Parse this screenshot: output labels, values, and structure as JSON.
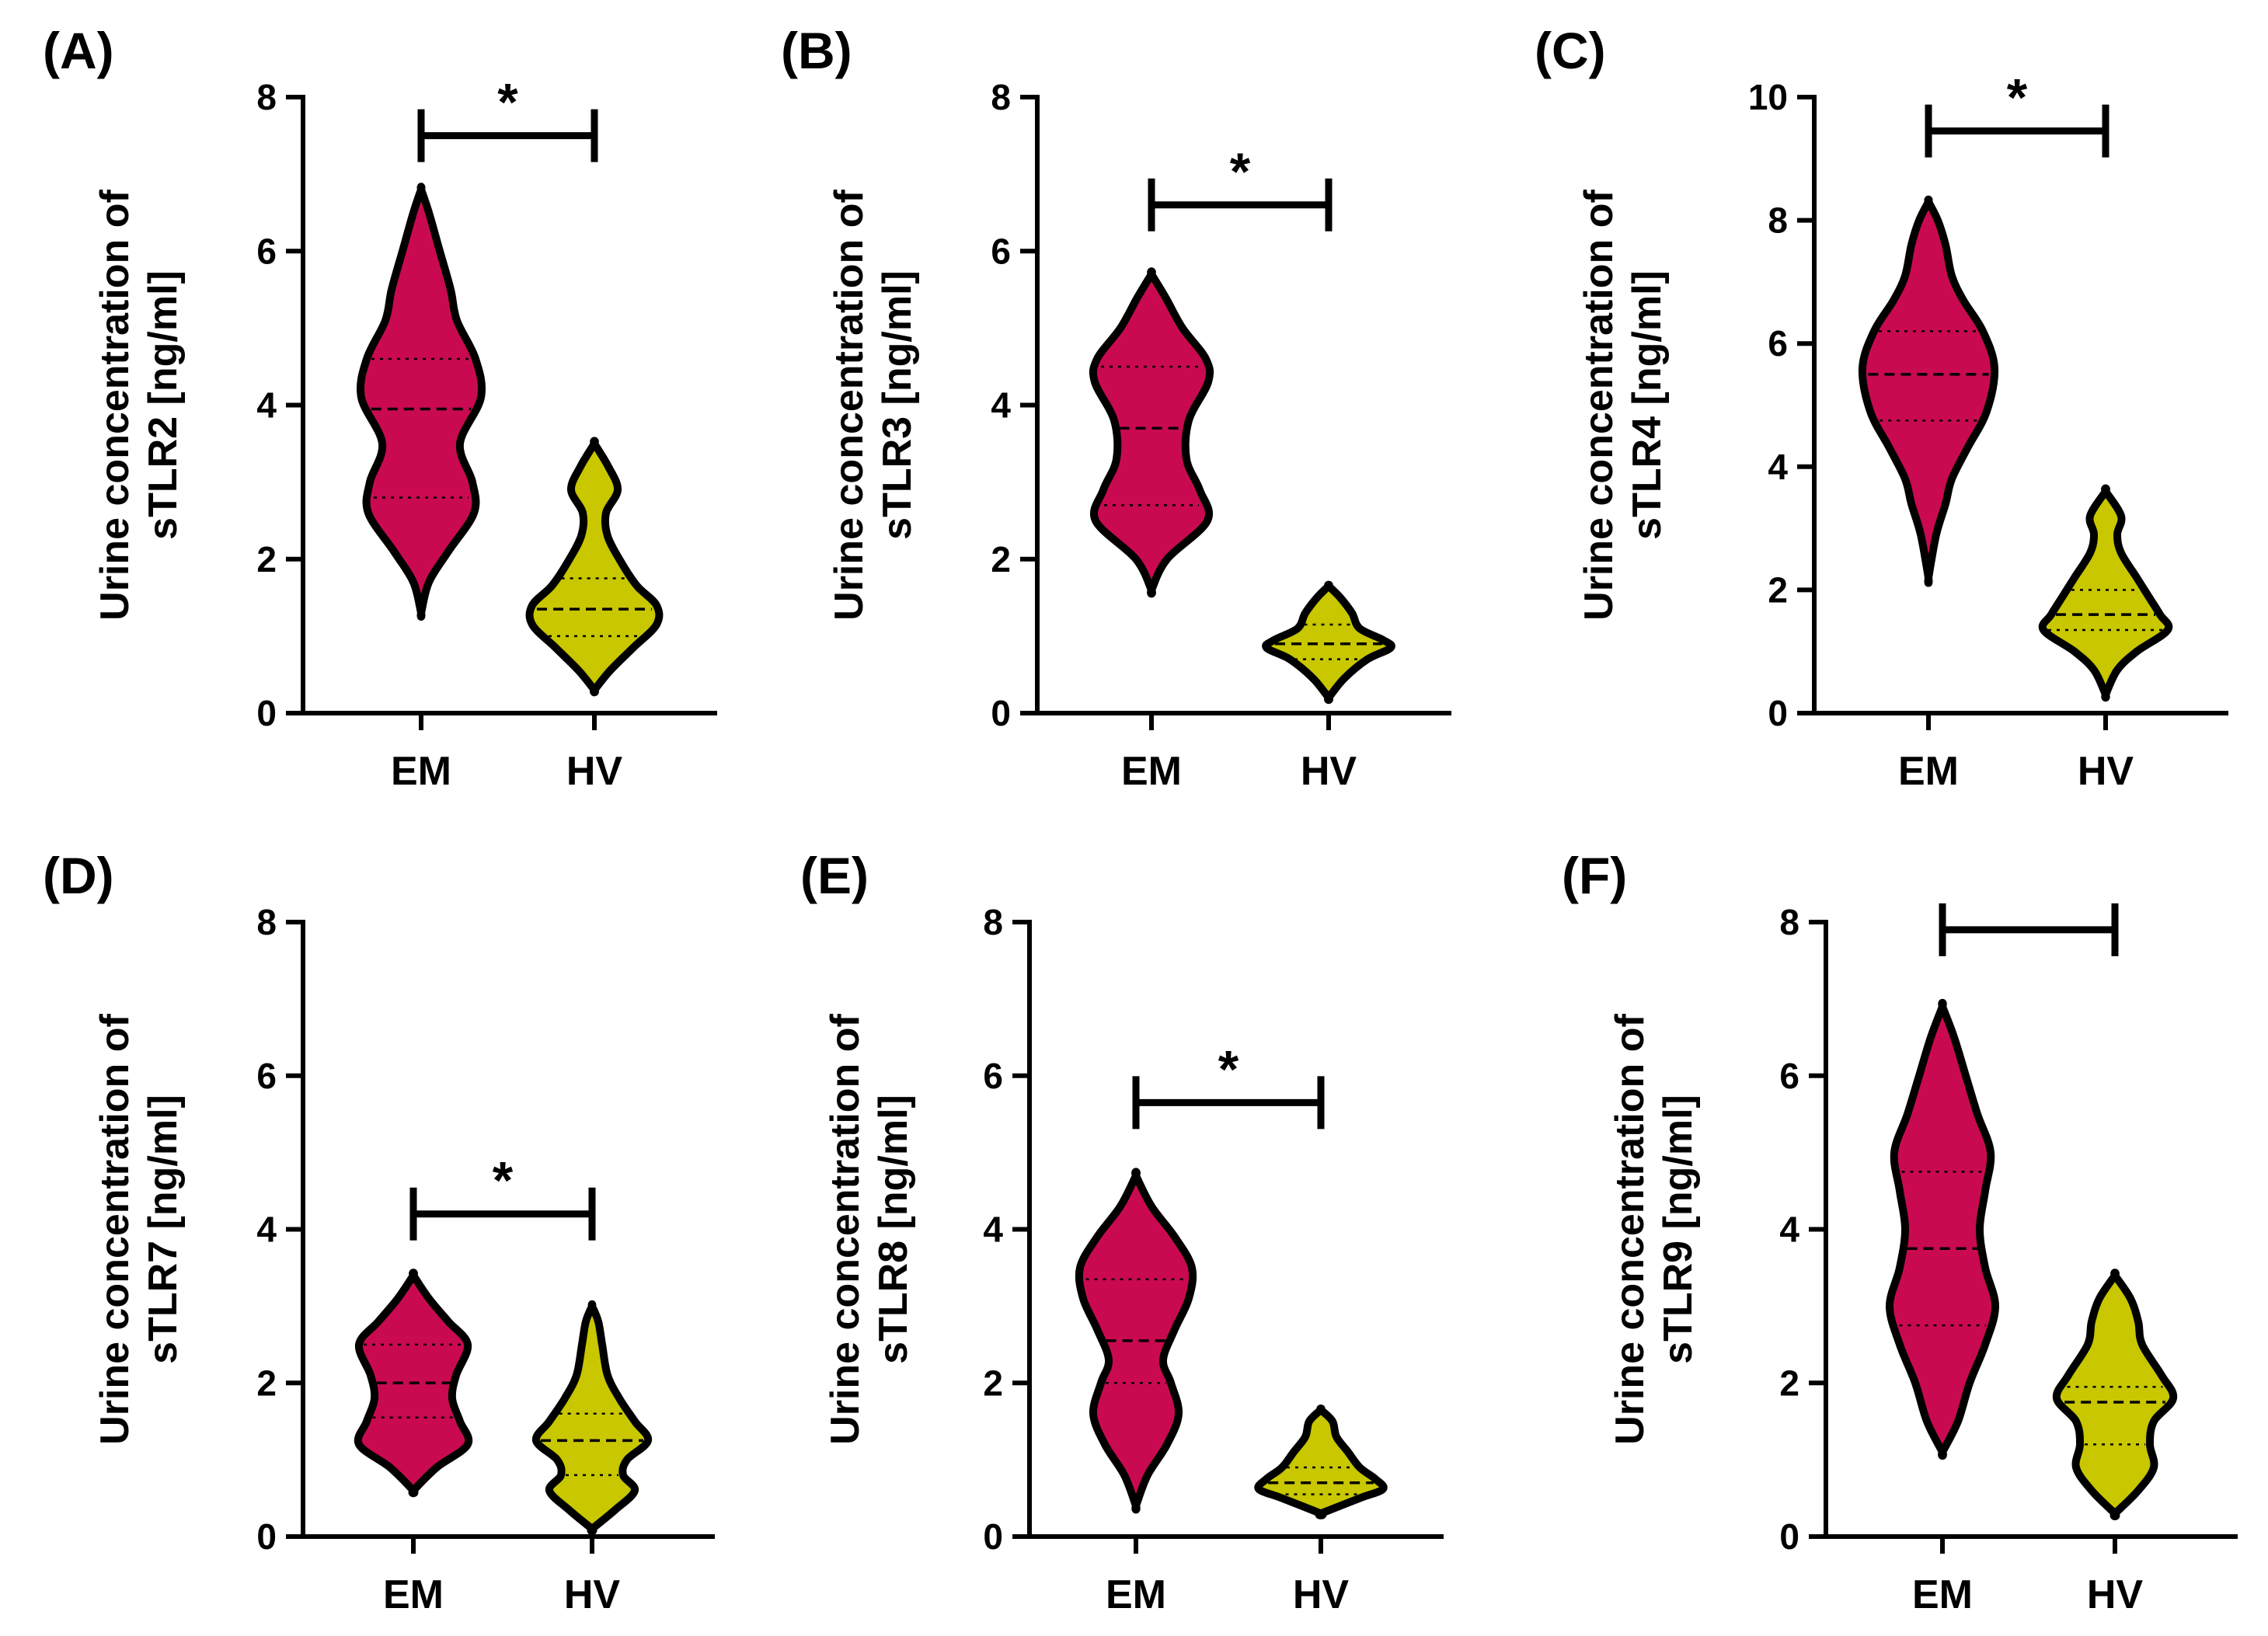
{
  "figure": {
    "group_colors": {
      "EM": "#c90a50",
      "HV": "#c8c700"
    }
  },
  "chart_data": [
    {
      "type": "violin",
      "panel_label": "(A)",
      "ylabel_line1": "Urine concentration of",
      "ylabel_line2": "sTLR2 [ng/ml]",
      "categories": [
        "EM",
        "HV"
      ],
      "ylim": [
        0,
        8
      ],
      "yticks": [
        "0",
        "2",
        "4",
        "6",
        "8"
      ],
      "series": [
        {
          "name": "EM",
          "min": 1.3,
          "max": 6.8,
          "q1": 2.8,
          "median": 3.95,
          "q3": 4.6,
          "density": [
            [
              1.3,
              0
            ],
            [
              1.7,
              0.1
            ],
            [
              2.1,
              0.35
            ],
            [
              2.6,
              0.68
            ],
            [
              3.0,
              0.66
            ],
            [
              3.5,
              0.5
            ],
            [
              4.1,
              0.77
            ],
            [
              4.6,
              0.7
            ],
            [
              5.1,
              0.46
            ],
            [
              5.5,
              0.38
            ],
            [
              6.0,
              0.24
            ],
            [
              6.5,
              0.1
            ],
            [
              6.8,
              0
            ]
          ]
        },
        {
          "name": "HV",
          "min": 0.3,
          "max": 3.5,
          "q1": 1.0,
          "median": 1.35,
          "q3": 1.75,
          "density": [
            [
              0.3,
              0
            ],
            [
              0.55,
              0.2
            ],
            [
              0.85,
              0.5
            ],
            [
              1.15,
              0.8
            ],
            [
              1.4,
              0.8
            ],
            [
              1.65,
              0.55
            ],
            [
              1.95,
              0.35
            ],
            [
              2.3,
              0.17
            ],
            [
              2.6,
              0.15
            ],
            [
              2.9,
              0.3
            ],
            [
              3.2,
              0.18
            ],
            [
              3.5,
              0
            ]
          ]
        }
      ],
      "significance": {
        "label": "*",
        "y": 7.5
      }
    },
    {
      "type": "violin",
      "panel_label": "(B)",
      "ylabel_line1": "Urine concentration of",
      "ylabel_line2": "sTLR3 [ng/ml]",
      "categories": [
        "EM",
        "HV"
      ],
      "ylim": [
        0,
        8
      ],
      "yticks": [
        "0",
        "2",
        "4",
        "6",
        "8"
      ],
      "series": [
        {
          "name": "EM",
          "min": 1.6,
          "max": 5.7,
          "q1": 2.7,
          "median": 3.7,
          "q3": 4.5,
          "density": [
            [
              1.6,
              0
            ],
            [
              2.0,
              0.2
            ],
            [
              2.5,
              0.72
            ],
            [
              2.9,
              0.62
            ],
            [
              3.3,
              0.45
            ],
            [
              3.8,
              0.48
            ],
            [
              4.3,
              0.73
            ],
            [
              4.6,
              0.7
            ],
            [
              5.0,
              0.4
            ],
            [
              5.4,
              0.18
            ],
            [
              5.7,
              0
            ]
          ]
        },
        {
          "name": "HV",
          "min": 0.2,
          "max": 1.65,
          "q1": 0.7,
          "median": 0.9,
          "q3": 1.15,
          "density": [
            [
              0.2,
              0
            ],
            [
              0.45,
              0.2
            ],
            [
              0.7,
              0.5
            ],
            [
              0.85,
              0.8
            ],
            [
              0.95,
              0.7
            ],
            [
              1.1,
              0.4
            ],
            [
              1.3,
              0.3
            ],
            [
              1.5,
              0.15
            ],
            [
              1.65,
              0
            ]
          ]
        }
      ],
      "significance": {
        "label": "*",
        "y": 6.6
      }
    },
    {
      "type": "violin",
      "panel_label": "(C)",
      "ylabel_line1": "Urine concentration of",
      "ylabel_line2": "sTLR4 [ng/ml]",
      "categories": [
        "EM",
        "HV"
      ],
      "ylim": [
        0,
        10
      ],
      "yticks": [
        "0",
        "2",
        "4",
        "6",
        "8",
        "10"
      ],
      "series": [
        {
          "name": "EM",
          "min": 2.2,
          "max": 8.3,
          "q1": 4.75,
          "median": 5.5,
          "q3": 6.2,
          "density": [
            [
              2.2,
              0
            ],
            [
              2.9,
              0.1
            ],
            [
              3.4,
              0.22
            ],
            [
              3.8,
              0.3
            ],
            [
              4.3,
              0.5
            ],
            [
              4.9,
              0.75
            ],
            [
              5.6,
              0.85
            ],
            [
              6.2,
              0.7
            ],
            [
              6.7,
              0.45
            ],
            [
              7.1,
              0.3
            ],
            [
              7.6,
              0.22
            ],
            [
              8.0,
              0.12
            ],
            [
              8.3,
              0
            ]
          ]
        },
        {
          "name": "HV",
          "min": 0.3,
          "max": 3.6,
          "q1": 1.35,
          "median": 1.6,
          "q3": 2.0,
          "density": [
            [
              0.3,
              0
            ],
            [
              0.7,
              0.15
            ],
            [
              1.0,
              0.4
            ],
            [
              1.35,
              0.8
            ],
            [
              1.6,
              0.7
            ],
            [
              1.9,
              0.55
            ],
            [
              2.2,
              0.4
            ],
            [
              2.6,
              0.2
            ],
            [
              2.9,
              0.15
            ],
            [
              3.2,
              0.2
            ],
            [
              3.6,
              0
            ]
          ]
        }
      ],
      "significance": {
        "label": "*",
        "y": 9.45
      }
    },
    {
      "type": "violin",
      "panel_label": "(D)",
      "ylabel_line1": "Urine concentration of",
      "ylabel_line2": "sTLR7 [ng/ml]",
      "categories": [
        "EM",
        "HV"
      ],
      "ylim": [
        0,
        8
      ],
      "yticks": [
        "0",
        "2",
        "4",
        "6",
        "8"
      ],
      "series": [
        {
          "name": "EM",
          "min": 0.6,
          "max": 3.4,
          "q1": 1.55,
          "median": 2.0,
          "q3": 2.5,
          "density": [
            [
              0.6,
              0
            ],
            [
              0.9,
              0.3
            ],
            [
              1.2,
              0.7
            ],
            [
              1.5,
              0.6
            ],
            [
              1.8,
              0.5
            ],
            [
              2.1,
              0.55
            ],
            [
              2.5,
              0.7
            ],
            [
              2.8,
              0.45
            ],
            [
              3.1,
              0.2
            ],
            [
              3.4,
              0
            ]
          ]
        },
        {
          "name": "HV",
          "min": 0.1,
          "max": 3.0,
          "q1": 0.8,
          "median": 1.25,
          "q3": 1.6,
          "density": [
            [
              0.1,
              0
            ],
            [
              0.35,
              0.3
            ],
            [
              0.6,
              0.55
            ],
            [
              0.8,
              0.4
            ],
            [
              1.0,
              0.45
            ],
            [
              1.25,
              0.72
            ],
            [
              1.5,
              0.55
            ],
            [
              1.8,
              0.35
            ],
            [
              2.1,
              0.2
            ],
            [
              2.5,
              0.13
            ],
            [
              2.8,
              0.08
            ],
            [
              3.0,
              0
            ]
          ]
        }
      ],
      "significance": {
        "label": "*",
        "y": 4.2
      }
    },
    {
      "type": "violin",
      "panel_label": "(E)",
      "ylabel_line1": "Urine concentration of",
      "ylabel_line2": "sTLR8 [ng/ml]",
      "categories": [
        "EM",
        "HV"
      ],
      "ylim": [
        0,
        8
      ],
      "yticks": [
        "0",
        "2",
        "4",
        "6",
        "8"
      ],
      "series": [
        {
          "name": "EM",
          "min": 0.4,
          "max": 4.7,
          "q1": 2.0,
          "median": 2.55,
          "q3": 3.35,
          "density": [
            [
              0.4,
              0
            ],
            [
              0.8,
              0.15
            ],
            [
              1.2,
              0.4
            ],
            [
              1.6,
              0.55
            ],
            [
              2.0,
              0.45
            ],
            [
              2.3,
              0.35
            ],
            [
              2.7,
              0.5
            ],
            [
              3.1,
              0.68
            ],
            [
              3.5,
              0.72
            ],
            [
              3.9,
              0.5
            ],
            [
              4.3,
              0.2
            ],
            [
              4.7,
              0
            ]
          ]
        },
        {
          "name": "HV",
          "min": 0.3,
          "max": 1.65,
          "q1": 0.55,
          "median": 0.7,
          "q3": 0.9,
          "density": [
            [
              0.3,
              0
            ],
            [
              0.5,
              0.5
            ],
            [
              0.62,
              0.8
            ],
            [
              0.75,
              0.7
            ],
            [
              0.9,
              0.5
            ],
            [
              1.1,
              0.35
            ],
            [
              1.3,
              0.2
            ],
            [
              1.5,
              0.15
            ],
            [
              1.65,
              0
            ]
          ]
        }
      ],
      "significance": {
        "label": "*",
        "y": 5.65
      }
    },
    {
      "type": "violin",
      "panel_label": "(F)",
      "ylabel_line1": "Urine concentration of",
      "ylabel_line2": "sTLR9 [ng/ml]",
      "categories": [
        "EM",
        "HV"
      ],
      "ylim": [
        0,
        8
      ],
      "yticks": [
        "0",
        "2",
        "4",
        "6",
        "8"
      ],
      "series": [
        {
          "name": "EM",
          "min": 1.1,
          "max": 6.9,
          "q1": 2.75,
          "median": 3.75,
          "q3": 4.75,
          "density": [
            [
              1.1,
              0
            ],
            [
              1.5,
              0.2
            ],
            [
              2.0,
              0.35
            ],
            [
              2.5,
              0.55
            ],
            [
              3.0,
              0.68
            ],
            [
              3.5,
              0.55
            ],
            [
              4.0,
              0.48
            ],
            [
              4.5,
              0.55
            ],
            [
              5.0,
              0.62
            ],
            [
              5.5,
              0.45
            ],
            [
              6.0,
              0.3
            ],
            [
              6.5,
              0.15
            ],
            [
              6.9,
              0
            ]
          ]
        },
        {
          "name": "HV",
          "min": 0.3,
          "max": 3.4,
          "q1": 1.2,
          "median": 1.75,
          "q3": 1.95,
          "density": [
            [
              0.3,
              0
            ],
            [
              0.6,
              0.3
            ],
            [
              0.9,
              0.5
            ],
            [
              1.2,
              0.45
            ],
            [
              1.5,
              0.5
            ],
            [
              1.8,
              0.75
            ],
            [
              2.1,
              0.6
            ],
            [
              2.5,
              0.35
            ],
            [
              2.8,
              0.3
            ],
            [
              3.1,
              0.2
            ],
            [
              3.4,
              0
            ]
          ]
        }
      ],
      "significance": {
        "label": "",
        "y": 7.9
      }
    }
  ]
}
